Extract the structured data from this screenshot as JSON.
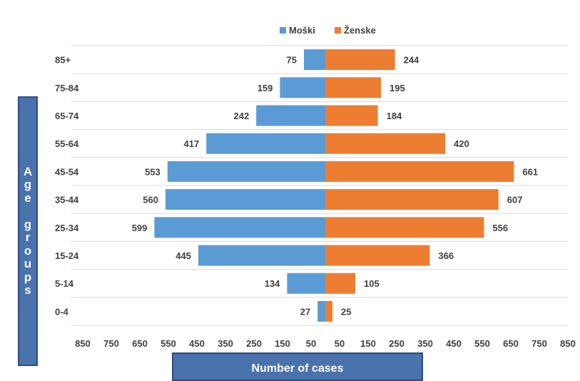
{
  "chart_data": {
    "type": "bar",
    "orientation": "horizontal",
    "style": "population-pyramid",
    "categories": [
      "85+",
      "75-84",
      "65-74",
      "55-64",
      "45-54",
      "35-44",
      "25-34",
      "15-24",
      "5-14",
      "0-4"
    ],
    "series": [
      {
        "name": "Moški",
        "color": "#5b9bd5",
        "values": [
          75,
          159,
          242,
          417,
          553,
          560,
          599,
          445,
          134,
          27
        ]
      },
      {
        "name": "Ženske",
        "color": "#ed7d31",
        "values": [
          244,
          195,
          184,
          420,
          661,
          607,
          556,
          366,
          105,
          25
        ]
      }
    ],
    "xlabel": "Number of cases",
    "ylabel": "Age groups",
    "xlim": [
      -850,
      850
    ],
    "xticks": [
      "850",
      "750",
      "650",
      "550",
      "450",
      "350",
      "250",
      "150",
      "50",
      "50",
      "150",
      "250",
      "350",
      "450",
      "550",
      "650",
      "750",
      "850"
    ],
    "grid": true,
    "legend": "top"
  }
}
